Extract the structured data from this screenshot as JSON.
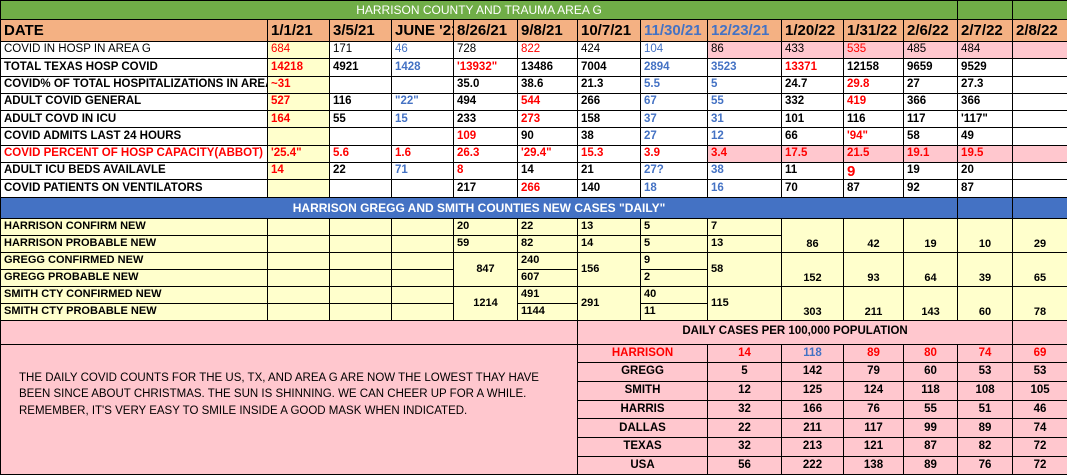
{
  "title": "HARRISON COUNTY  AND  TRAUMA AREA G",
  "header": {
    "label": "DATE",
    "dates": [
      {
        "v": "1/1/21",
        "c": "black"
      },
      {
        "v": "3/5/21",
        "c": "black"
      },
      {
        "v": "JUNE '21",
        "c": "black"
      },
      {
        "v": "8/26/21",
        "c": "black"
      },
      {
        "v": "9/8/21",
        "c": "black"
      },
      {
        "v": "10/7/21",
        "c": "black"
      },
      {
        "v": "11/30/21",
        "c": "blue"
      },
      {
        "v": "12/23/21",
        "c": "blue"
      },
      {
        "v": "1/20/22",
        "c": "black"
      },
      {
        "v": "1/31/22",
        "c": "black"
      },
      {
        "v": "2/6/22",
        "c": "black"
      },
      {
        "v": "2/7/22",
        "c": "black"
      },
      {
        "v": "2/8/22",
        "c": "black"
      }
    ]
  },
  "hospital_rows": [
    {
      "label": "COVID IN HOSP IN AREA G",
      "label_color": "black",
      "normal": true,
      "pink_from": 7,
      "cells": [
        [
          "684",
          "red"
        ],
        [
          "171",
          "black"
        ],
        [
          "46",
          "blue"
        ],
        [
          "728",
          "black"
        ],
        [
          "822",
          "red"
        ],
        [
          "424",
          "black"
        ],
        [
          "104",
          "blue"
        ],
        [
          "86",
          "black"
        ],
        [
          "433",
          "black"
        ],
        [
          "535",
          "red"
        ],
        [
          "485",
          "black"
        ],
        [
          "484",
          "black"
        ],
        [
          "",
          ""
        ]
      ]
    },
    {
      "label": "TOTAL TEXAS HOSP COVID",
      "label_color": "black",
      "cells": [
        [
          "14218",
          "red"
        ],
        [
          "4921",
          "black"
        ],
        [
          "1428",
          "blue"
        ],
        [
          "'13932\"",
          "red"
        ],
        [
          "13486",
          "black"
        ],
        [
          "7004",
          "black"
        ],
        [
          "2894",
          "blue"
        ],
        [
          "3523",
          "blue"
        ],
        [
          "13371",
          "red"
        ],
        [
          "12158",
          "black"
        ],
        [
          "9659",
          "black"
        ],
        [
          "9529",
          "black"
        ],
        [
          "",
          ""
        ]
      ]
    },
    {
      "label": "COVID% OF TOTAL HOSPITALIZATIONS IN AREA G",
      "label_color": "black",
      "cells": [
        [
          "~31",
          "red"
        ],
        [
          "",
          ""
        ],
        [
          "",
          ""
        ],
        [
          "35.0",
          "black"
        ],
        [
          "38.6",
          "black"
        ],
        [
          "21.3",
          "black"
        ],
        [
          "5.5",
          "blue"
        ],
        [
          "5",
          "blue"
        ],
        [
          "24.7",
          "black"
        ],
        [
          "29.8",
          "red"
        ],
        [
          "27",
          "black"
        ],
        [
          "27.3",
          "black"
        ],
        [
          "",
          ""
        ]
      ]
    },
    {
      "label": "ADULT COVID GENERAL",
      "label_color": "black",
      "cells": [
        [
          "527",
          "red"
        ],
        [
          "116",
          "black"
        ],
        [
          "\"22\"",
          "blue"
        ],
        [
          "494",
          "black"
        ],
        [
          "544",
          "red"
        ],
        [
          "266",
          "black"
        ],
        [
          "67",
          "blue"
        ],
        [
          "55",
          "blue"
        ],
        [
          "332",
          "black"
        ],
        [
          "419",
          "red"
        ],
        [
          "366",
          "black"
        ],
        [
          "366",
          "black"
        ],
        [
          "",
          ""
        ]
      ]
    },
    {
      "label": "ADULT COVD IN ICU",
      "label_color": "black",
      "cells": [
        [
          "164",
          "red"
        ],
        [
          "55",
          "black"
        ],
        [
          "15",
          "blue"
        ],
        [
          "233",
          "black"
        ],
        [
          "273",
          "red"
        ],
        [
          "158",
          "black"
        ],
        [
          "37",
          "blue"
        ],
        [
          "31",
          "blue"
        ],
        [
          "101",
          "black"
        ],
        [
          "116",
          "black"
        ],
        [
          "117",
          "black"
        ],
        [
          "'117\"",
          "black"
        ],
        [
          "",
          ""
        ]
      ]
    },
    {
      "label": "COVID ADMITS LAST 24 HOURS",
      "label_color": "black",
      "cells": [
        [
          "",
          ""
        ],
        [
          "",
          ""
        ],
        [
          "",
          ""
        ],
        [
          "109",
          "red"
        ],
        [
          "90",
          "black"
        ],
        [
          "38",
          "black"
        ],
        [
          "27",
          "blue"
        ],
        [
          "12",
          "blue"
        ],
        [
          "66",
          "black"
        ],
        [
          "'94\"",
          "red"
        ],
        [
          "58",
          "black"
        ],
        [
          "49",
          "black"
        ],
        [
          "",
          ""
        ]
      ]
    },
    {
      "label": "COVID PERCENT OF HOSP  CAPACITY(ABBOT)",
      "label_color": "red",
      "pink_from": 7,
      "cells": [
        [
          "'25.4\"",
          "red"
        ],
        [
          "5.6",
          "red"
        ],
        [
          "1.6",
          "red"
        ],
        [
          "26.3",
          "red"
        ],
        [
          "'29.4\"",
          "red"
        ],
        [
          "15.3",
          "red"
        ],
        [
          "3.9",
          "red"
        ],
        [
          "3.4",
          "red"
        ],
        [
          "17.5",
          "red"
        ],
        [
          "21.5",
          "red"
        ],
        [
          "19.1",
          "red"
        ],
        [
          "19.5",
          "red"
        ],
        [
          "",
          ""
        ]
      ]
    },
    {
      "label": "ADULT ICU BEDS AVAILAVLE",
      "label_color": "black",
      "cells": [
        [
          "14",
          "red"
        ],
        [
          "22",
          "black"
        ],
        [
          "71",
          "blue"
        ],
        [
          "8",
          "red"
        ],
        [
          "14",
          "black"
        ],
        [
          "21",
          "black"
        ],
        [
          "27?",
          "blue"
        ],
        [
          "38",
          "blue"
        ],
        [
          "11",
          "black"
        ],
        [
          "9",
          "red"
        ],
        [
          "19",
          "black"
        ],
        [
          "20",
          "black"
        ],
        [
          "",
          ""
        ]
      ]
    },
    {
      "label": "COVID PATIENTS ON VENTILATORS",
      "label_color": "black",
      "cells": [
        [
          "",
          ""
        ],
        [
          "",
          ""
        ],
        [
          "",
          ""
        ],
        [
          "217",
          "black"
        ],
        [
          "266",
          "red"
        ],
        [
          "140",
          "black"
        ],
        [
          "18",
          "blue"
        ],
        [
          "16",
          "blue"
        ],
        [
          "70",
          "black"
        ],
        [
          "87",
          "black"
        ],
        [
          "92",
          "black"
        ],
        [
          "87",
          "black"
        ],
        [
          "",
          ""
        ]
      ]
    }
  ],
  "county_section": {
    "title": "HARRISON GREGG AND SMITH COUNTIES NEW CASES \"DAILY\"",
    "labels": [
      "HARRISON CONFIRM NEW",
      "HARRISON PROBABLE  NEW",
      "GREGG CONFIRMED NEW",
      "GREGG PROBABLE NEW",
      "SMITH  CTY CONFIRMED NEW",
      "SMITH  CTY PROBABLE NEW"
    ],
    "groups": [
      {
        "d_8_26": [
          "20",
          "59"
        ],
        "d_9_8": [
          "22",
          "82"
        ],
        "d_10_7": [
          "13",
          "14"
        ],
        "d_11_30": [
          "5",
          "5"
        ],
        "d_12_23": [
          "7",
          "13"
        ],
        "combined": [
          "86",
          "42",
          "19",
          "10",
          "29"
        ]
      },
      {
        "d_8_26": [
          "847"
        ],
        "d_9_8": [
          "240",
          "607"
        ],
        "d_10_7": [
          "156"
        ],
        "d_11_30": [
          "9",
          "2"
        ],
        "d_12_23": [
          "58"
        ],
        "combined": [
          "152",
          "93",
          "64",
          "39",
          "65"
        ]
      },
      {
        "d_8_26": [
          "1214"
        ],
        "d_9_8": [
          "491",
          "1144"
        ],
        "d_10_7": [
          "291"
        ],
        "d_11_30": [
          "40",
          "11"
        ],
        "d_12_23": [
          "115"
        ],
        "combined": [
          "303",
          "211",
          "143",
          "60",
          "78"
        ]
      }
    ]
  },
  "note": "THE DAILY COVID COUNTS FOR THE US, TX, AND AREA G ARE NOW THE LOWEST THAY HAVE BEEN SINCE ABOUT CHRISTMAS. THE SUN IS SHINNING. WE CAN CHEER UP FOR A WHILE. REMEMBER, IT'S VERY EASY TO SMILE INSIDE A GOOD MASK WHEN INDICATED.",
  "per_100k": {
    "title": "DAILY CASES PER 100,000 POPULATION",
    "rows": [
      {
        "label": "HARRISON",
        "label_color": "red",
        "values": [
          [
            "14",
            "red"
          ],
          [
            "118",
            "blue"
          ],
          [
            "89",
            "red"
          ],
          [
            "80",
            "red"
          ],
          [
            "74",
            "red"
          ],
          [
            "69",
            "red"
          ]
        ]
      },
      {
        "label": "GREGG",
        "label_color": "black",
        "values": [
          [
            "5",
            "black"
          ],
          [
            "142",
            "black"
          ],
          [
            "79",
            "black"
          ],
          [
            "60",
            "black"
          ],
          [
            "53",
            "black"
          ],
          [
            "53",
            "black"
          ]
        ]
      },
      {
        "label": "SMITH",
        "label_color": "black",
        "values": [
          [
            "12",
            "black"
          ],
          [
            "125",
            "black"
          ],
          [
            "124",
            "black"
          ],
          [
            "118",
            "black"
          ],
          [
            "108",
            "black"
          ],
          [
            "105",
            "black"
          ]
        ]
      },
      {
        "label": "HARRIS",
        "label_color": "black",
        "values": [
          [
            "32",
            "black"
          ],
          [
            "166",
            "black"
          ],
          [
            "76",
            "black"
          ],
          [
            "55",
            "black"
          ],
          [
            "51",
            "black"
          ],
          [
            "46",
            "black"
          ]
        ]
      },
      {
        "label": "DALLAS",
        "label_color": "black",
        "values": [
          [
            "22",
            "black"
          ],
          [
            "211",
            "black"
          ],
          [
            "117",
            "black"
          ],
          [
            "99",
            "black"
          ],
          [
            "89",
            "black"
          ],
          [
            "74",
            "black"
          ]
        ]
      },
      {
        "label": "TEXAS",
        "label_color": "black",
        "values": [
          [
            "32",
            "black"
          ],
          [
            "213",
            "black"
          ],
          [
            "121",
            "black"
          ],
          [
            "87",
            "black"
          ],
          [
            "82",
            "black"
          ],
          [
            "72",
            "black"
          ]
        ]
      },
      {
        "label": "USA",
        "label_color": "black",
        "values": [
          [
            "56",
            "black"
          ],
          [
            "222",
            "black"
          ],
          [
            "138",
            "black"
          ],
          [
            "89",
            "black"
          ],
          [
            "76",
            "black"
          ],
          [
            "72",
            "black"
          ]
        ]
      }
    ]
  },
  "colors": {
    "title_bg": "#70ad47",
    "header_bg": "#f4b183",
    "banner_bg": "#4472c4",
    "yellow": "#ffffcc",
    "pink": "#ffc7ce",
    "red": "#ff0000",
    "blue": "#4472c4"
  }
}
